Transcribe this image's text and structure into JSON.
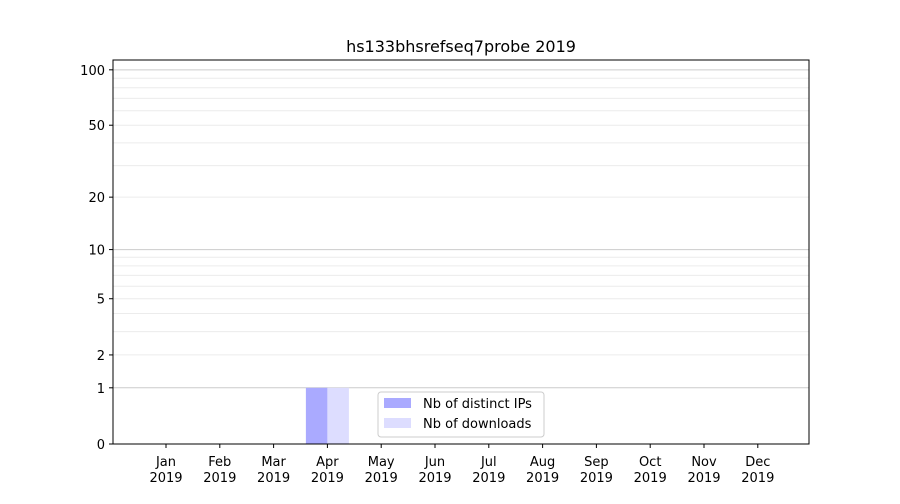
{
  "chart_data": {
    "type": "bar",
    "title": "hs133bhsrefseq7probe 2019",
    "xlabel": "",
    "ylabel": "",
    "y_scale": "log(1+y)",
    "ylim": [
      0,
      113
    ],
    "y_ticks": [
      0,
      1,
      2,
      5,
      10,
      20,
      50,
      100
    ],
    "grid": true,
    "legend_position": "lower center",
    "categories": [
      "Jan\n2019",
      "Feb\n2019",
      "Mar\n2019",
      "Apr\n2019",
      "May\n2019",
      "Jun\n2019",
      "Jul\n2019",
      "Aug\n2019",
      "Sep\n2019",
      "Oct\n2019",
      "Nov\n2019",
      "Dec\n2019"
    ],
    "series": [
      {
        "name": "Nb of distinct IPs",
        "color": "#aaaaff",
        "values": [
          0,
          0,
          0,
          1,
          0,
          0,
          0,
          0,
          0,
          0,
          0,
          0
        ]
      },
      {
        "name": "Nb of downloads",
        "color": "#ddddff",
        "values": [
          0,
          0,
          0,
          1,
          0,
          0,
          0,
          0,
          0,
          0,
          0,
          0
        ]
      }
    ]
  }
}
